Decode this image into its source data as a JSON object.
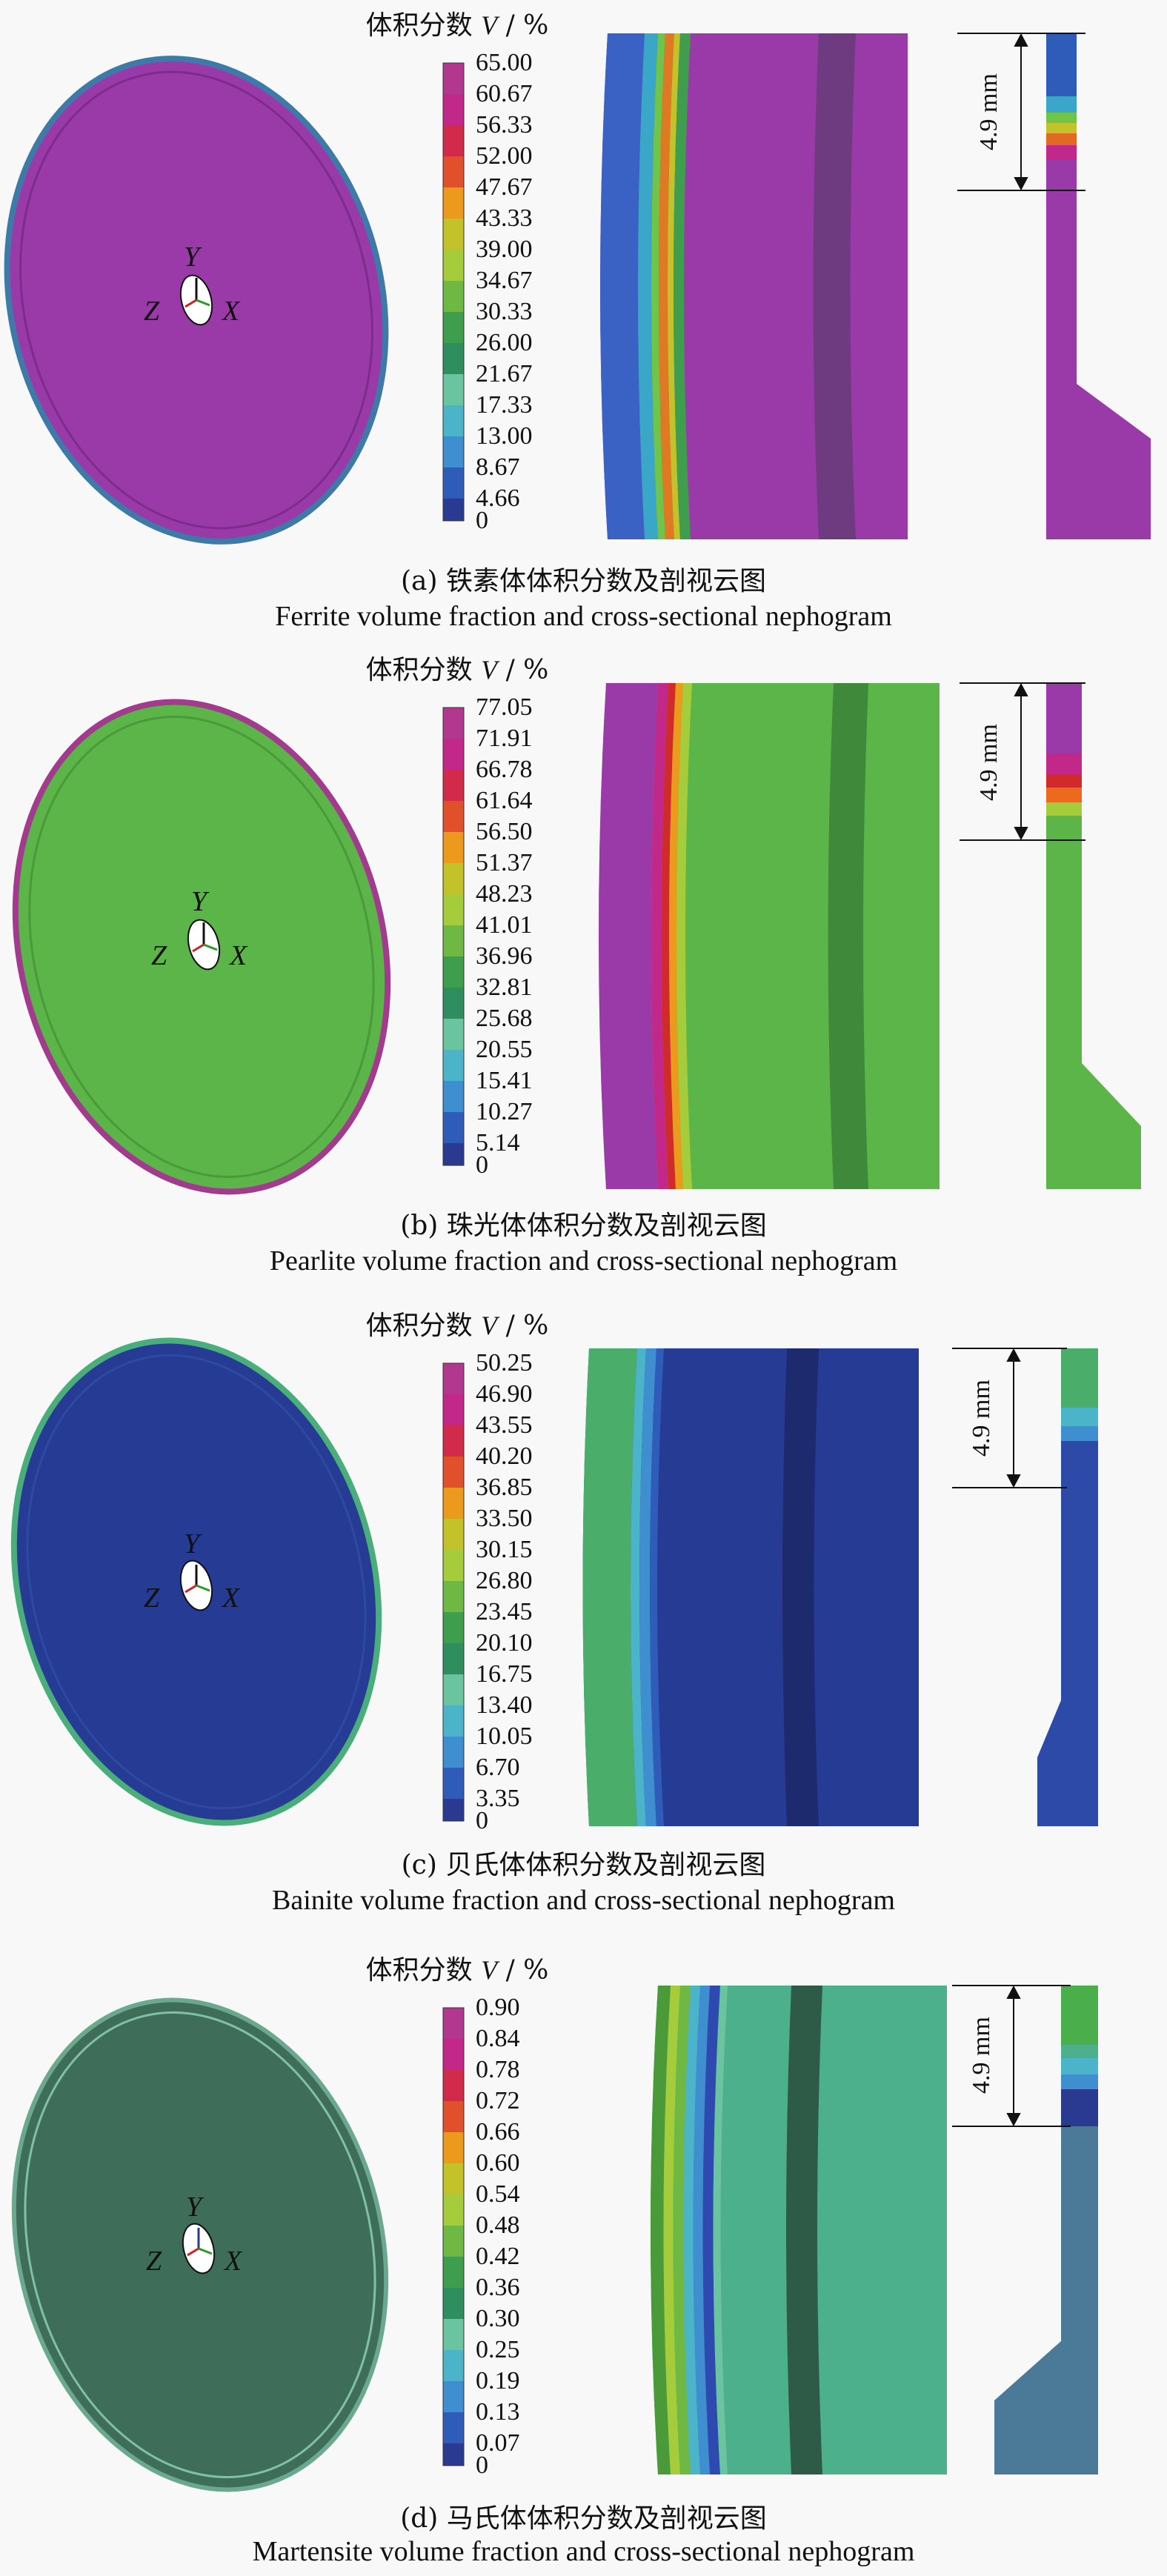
{
  "legend_title_prefix": "体积分数",
  "legend_title_var": "V",
  "legend_title_unit": "/ %",
  "axis_labels": {
    "x": "X",
    "y": "Y",
    "z": "Z"
  },
  "dimension_label": "4.9 mm",
  "colors": {
    "ferrite_matrix": "#9a3aa8",
    "pearlite_matrix": "#5bb548",
    "bainite_matrix": "#263c94",
    "martensite_matrix": "#3e6e5a",
    "martensite_section": "#4db08c",
    "martensite_strip": "#4a7a98"
  },
  "panels": [
    {
      "caption_cn": "(a) 铁素体体积分数及剖视云图",
      "caption_en": "Ferrite volume fraction and cross-sectional nephogram",
      "ticks": [
        "65.00",
        "60.67",
        "56.33",
        "52.00",
        "47.67",
        "43.33",
        "39.00",
        "34.67",
        "30.33",
        "26.00",
        "21.67",
        "17.33",
        "13.00",
        "8.67",
        "4.66",
        "0"
      ]
    },
    {
      "caption_cn": "(b) 珠光体体积分数及剖视云图",
      "caption_en": "Pearlite volume fraction and cross-sectional nephogram",
      "ticks": [
        "77.05",
        "71.91",
        "66.78",
        "61.64",
        "56.50",
        "51.37",
        "48.23",
        "41.01",
        "36.96",
        "32.81",
        "25.68",
        "20.55",
        "15.41",
        "10.27",
        "5.14",
        "0"
      ]
    },
    {
      "caption_cn": "(c) 贝氏体体积分数及剖视云图",
      "caption_en": "Bainite volume fraction and cross-sectional nephogram",
      "ticks": [
        "50.25",
        "46.90",
        "43.55",
        "40.20",
        "36.85",
        "33.50",
        "30.15",
        "26.80",
        "23.45",
        "20.10",
        "16.75",
        "13.40",
        "10.05",
        "6.70",
        "3.35",
        "0"
      ]
    },
    {
      "caption_cn": "(d) 马氏体体积分数及剖视云图",
      "caption_en": "Martensite volume fraction and cross-sectional nephogram",
      "ticks": [
        "0.90",
        "0.84",
        "0.78",
        "0.72",
        "0.66",
        "0.60",
        "0.54",
        "0.48",
        "0.42",
        "0.36",
        "0.30",
        "0.25",
        "0.19",
        "0.13",
        "0.07",
        "0"
      ]
    }
  ]
}
